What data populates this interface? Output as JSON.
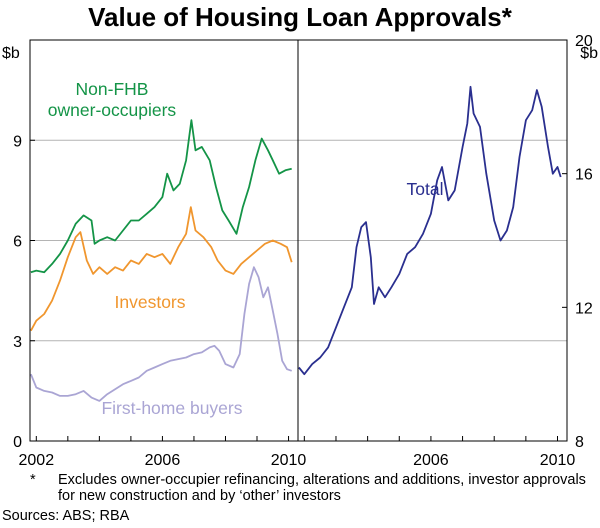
{
  "title": "Value of Housing Loan Approvals*",
  "footnote": {
    "marker": "*",
    "text": "Excludes owner-occupier refinancing, alterations and additions, investor approvals for new construction and by ‘other’ investors"
  },
  "sources": "Sources: ABS; RBA",
  "chart_data": [
    {
      "type": "line",
      "panel": "left",
      "ylabel": "$b",
      "ylim": [
        0,
        12
      ],
      "yticks": [
        "0",
        "3",
        "6",
        "9"
      ],
      "xlim": [
        2001.8,
        2010.3
      ],
      "xticks": [
        "2002",
        "2006",
        "2010"
      ],
      "grid": true,
      "colors": {
        "Non-FHB owner-occupiers": "#149447",
        "Investors": "#f0962e",
        "First-home buyers": "#aaa5d4"
      },
      "series": [
        {
          "name": "Non-FHB owner-occupiers",
          "label_lines": [
            "Non-FHB",
            "owner-occupiers"
          ],
          "points": [
            [
              2001.83,
              5.05
            ],
            [
              2002.0,
              5.1
            ],
            [
              2002.25,
              5.05
            ],
            [
              2002.5,
              5.3
            ],
            [
              2002.75,
              5.6
            ],
            [
              2003.0,
              6.0
            ],
            [
              2003.25,
              6.5
            ],
            [
              2003.5,
              6.75
            ],
            [
              2003.75,
              6.6
            ],
            [
              2003.85,
              5.9
            ],
            [
              2004.0,
              6.0
            ],
            [
              2004.25,
              6.1
            ],
            [
              2004.5,
              6.0
            ],
            [
              2004.75,
              6.3
            ],
            [
              2005.0,
              6.6
            ],
            [
              2005.25,
              6.6
            ],
            [
              2005.5,
              6.8
            ],
            [
              2005.75,
              7.0
            ],
            [
              2006.0,
              7.3
            ],
            [
              2006.15,
              8.0
            ],
            [
              2006.35,
              7.5
            ],
            [
              2006.55,
              7.7
            ],
            [
              2006.75,
              8.4
            ],
            [
              2006.92,
              9.6
            ],
            [
              2007.05,
              8.7
            ],
            [
              2007.25,
              8.8
            ],
            [
              2007.5,
              8.4
            ],
            [
              2007.7,
              7.6
            ],
            [
              2007.9,
              6.9
            ],
            [
              2008.1,
              6.6
            ],
            [
              2008.35,
              6.2
            ],
            [
              2008.55,
              7.0
            ],
            [
              2008.75,
              7.6
            ],
            [
              2008.95,
              8.4
            ],
            [
              2009.15,
              9.05
            ],
            [
              2009.35,
              8.7
            ],
            [
              2009.5,
              8.4
            ],
            [
              2009.7,
              8.0
            ],
            [
              2009.9,
              8.1
            ],
            [
              2010.1,
              8.15
            ]
          ]
        },
        {
          "name": "Investors",
          "label_lines": [
            "Investors"
          ],
          "points": [
            [
              2001.83,
              3.3
            ],
            [
              2002.0,
              3.6
            ],
            [
              2002.25,
              3.8
            ],
            [
              2002.5,
              4.2
            ],
            [
              2002.75,
              4.8
            ],
            [
              2003.0,
              5.5
            ],
            [
              2003.25,
              6.1
            ],
            [
              2003.4,
              6.25
            ],
            [
              2003.6,
              5.4
            ],
            [
              2003.8,
              5.0
            ],
            [
              2004.0,
              5.2
            ],
            [
              2004.25,
              5.0
            ],
            [
              2004.5,
              5.2
            ],
            [
              2004.75,
              5.1
            ],
            [
              2005.0,
              5.4
            ],
            [
              2005.25,
              5.3
            ],
            [
              2005.5,
              5.6
            ],
            [
              2005.75,
              5.5
            ],
            [
              2006.0,
              5.6
            ],
            [
              2006.25,
              5.3
            ],
            [
              2006.5,
              5.8
            ],
            [
              2006.75,
              6.2
            ],
            [
              2006.9,
              7.0
            ],
            [
              2007.05,
              6.3
            ],
            [
              2007.3,
              6.1
            ],
            [
              2007.55,
              5.8
            ],
            [
              2007.75,
              5.4
            ],
            [
              2008.0,
              5.1
            ],
            [
              2008.25,
              5.0
            ],
            [
              2008.5,
              5.3
            ],
            [
              2008.75,
              5.5
            ],
            [
              2009.0,
              5.7
            ],
            [
              2009.25,
              5.9
            ],
            [
              2009.5,
              6.0
            ],
            [
              2009.75,
              5.9
            ],
            [
              2009.95,
              5.8
            ],
            [
              2010.1,
              5.35
            ]
          ]
        },
        {
          "name": "First-home buyers",
          "label_lines": [
            "First-home buyers"
          ],
          "points": [
            [
              2001.83,
              2.0
            ],
            [
              2002.0,
              1.6
            ],
            [
              2002.25,
              1.5
            ],
            [
              2002.5,
              1.45
            ],
            [
              2002.75,
              1.35
            ],
            [
              2003.0,
              1.35
            ],
            [
              2003.25,
              1.4
            ],
            [
              2003.5,
              1.5
            ],
            [
              2003.75,
              1.3
            ],
            [
              2004.0,
              1.2
            ],
            [
              2004.25,
              1.4
            ],
            [
              2004.5,
              1.55
            ],
            [
              2004.75,
              1.7
            ],
            [
              2005.0,
              1.8
            ],
            [
              2005.25,
              1.9
            ],
            [
              2005.5,
              2.1
            ],
            [
              2005.75,
              2.2
            ],
            [
              2006.0,
              2.3
            ],
            [
              2006.25,
              2.4
            ],
            [
              2006.5,
              2.45
            ],
            [
              2006.75,
              2.5
            ],
            [
              2007.0,
              2.6
            ],
            [
              2007.25,
              2.65
            ],
            [
              2007.5,
              2.8
            ],
            [
              2007.65,
              2.85
            ],
            [
              2007.8,
              2.7
            ],
            [
              2008.0,
              2.3
            ],
            [
              2008.25,
              2.2
            ],
            [
              2008.45,
              2.6
            ],
            [
              2008.6,
              3.8
            ],
            [
              2008.75,
              4.7
            ],
            [
              2008.9,
              5.2
            ],
            [
              2009.05,
              4.9
            ],
            [
              2009.2,
              4.3
            ],
            [
              2009.35,
              4.6
            ],
            [
              2009.5,
              3.9
            ],
            [
              2009.65,
              3.2
            ],
            [
              2009.8,
              2.4
            ],
            [
              2009.95,
              2.15
            ],
            [
              2010.1,
              2.1
            ]
          ]
        }
      ]
    },
    {
      "type": "line",
      "panel": "right",
      "ylabel": "$b",
      "ylim": [
        8,
        20
      ],
      "yticks": [
        "8",
        "12",
        "16",
        "20"
      ],
      "xlim": [
        2001.8,
        2010.3
      ],
      "xticks": [
        "2006",
        "2010"
      ],
      "grid": true,
      "colors": {
        "Total": "#2a2f8f"
      },
      "series": [
        {
          "name": "Total",
          "label_lines": [
            "Total"
          ],
          "points": [
            [
              2001.83,
              10.2
            ],
            [
              2002.0,
              10.0
            ],
            [
              2002.25,
              10.3
            ],
            [
              2002.5,
              10.5
            ],
            [
              2002.75,
              10.8
            ],
            [
              2003.0,
              11.4
            ],
            [
              2003.25,
              12.0
            ],
            [
              2003.5,
              12.6
            ],
            [
              2003.65,
              13.8
            ],
            [
              2003.8,
              14.4
            ],
            [
              2003.95,
              14.55
            ],
            [
              2004.1,
              13.5
            ],
            [
              2004.2,
              12.1
            ],
            [
              2004.35,
              12.6
            ],
            [
              2004.55,
              12.3
            ],
            [
              2004.75,
              12.6
            ],
            [
              2005.0,
              13.0
            ],
            [
              2005.25,
              13.6
            ],
            [
              2005.5,
              13.8
            ],
            [
              2005.75,
              14.2
            ],
            [
              2006.0,
              14.8
            ],
            [
              2006.2,
              15.8
            ],
            [
              2006.35,
              16.2
            ],
            [
              2006.55,
              15.2
            ],
            [
              2006.75,
              15.5
            ],
            [
              2007.0,
              16.8
            ],
            [
              2007.15,
              17.5
            ],
            [
              2007.25,
              18.6
            ],
            [
              2007.35,
              17.8
            ],
            [
              2007.55,
              17.4
            ],
            [
              2007.75,
              16.0
            ],
            [
              2008.0,
              14.6
            ],
            [
              2008.2,
              14.0
            ],
            [
              2008.4,
              14.3
            ],
            [
              2008.6,
              15.0
            ],
            [
              2008.8,
              16.5
            ],
            [
              2009.0,
              17.6
            ],
            [
              2009.2,
              17.9
            ],
            [
              2009.35,
              18.5
            ],
            [
              2009.5,
              18.0
            ],
            [
              2009.7,
              16.8
            ],
            [
              2009.85,
              16.0
            ],
            [
              2010.0,
              16.2
            ],
            [
              2010.1,
              15.9
            ]
          ]
        }
      ]
    }
  ]
}
